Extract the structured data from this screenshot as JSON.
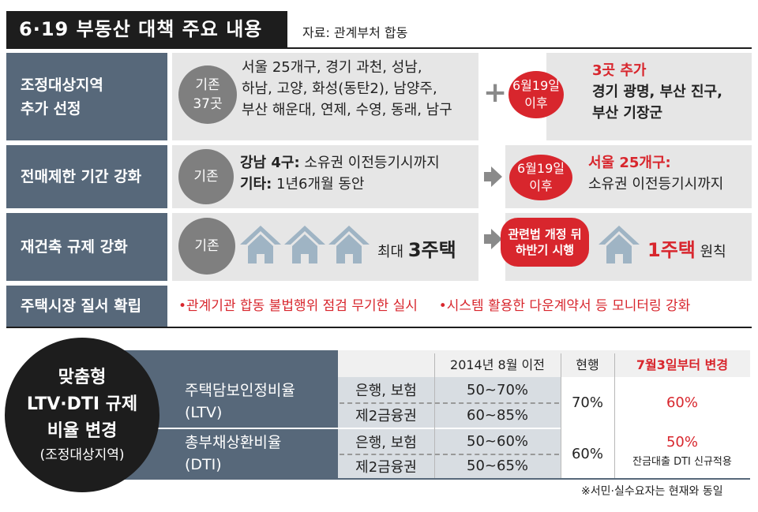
{
  "header": {
    "title": "6·19 부동산 대책 주요 내용",
    "source": "자료: 관계부처 합동"
  },
  "rows": {
    "r1": {
      "label_line1": "조정대상지역",
      "label_line2": "추가 선정",
      "existing_line1": "기존",
      "existing_line2": "37곳",
      "areas_line1": "서울 25개구, 경기 과천, 성남,",
      "areas_line2": "하남, 고양, 화성(동탄2), 남양주,",
      "areas_line3": "부산 해운대, 연제, 수영, 동래, 남구",
      "plus": "+",
      "date_line1": "6월19일",
      "date_line2": "이후",
      "added_title": "3곳 추가",
      "added_line1": "경기 광명, 부산 진구,",
      "added_line2": "부산 기장군"
    },
    "r2": {
      "label": "전매제한 기간 강화",
      "existing": "기존",
      "gangnam_key": "강남 4구:",
      "gangnam_val": " 소유권 이전등기시까지",
      "other_key": "기타:",
      "other_val": " 1년6개월 동안",
      "date_line1": "6월19일",
      "date_line2": "이후",
      "new_title": "서울 25개구:",
      "new_line": "소유권 이전등기시까지"
    },
    "r3": {
      "label": "재건축 규제 강화",
      "existing": "기존",
      "max_prefix": "최대 ",
      "max_value": "3주택",
      "change_line1": "관련법 개정 뒤",
      "change_line2": "하반기 시행",
      "new_value": "1주택",
      "new_suffix": " 원칙"
    },
    "r4": {
      "label": "주택시장 질서 확립",
      "bullet1": "•관계기관 합동 불법행위 점검 무기한 실시",
      "bullet2": "•시스템 활용한 다운계약서 등 모니터링 강화"
    }
  },
  "ltv_dti": {
    "badge_line1": "맞춤형",
    "badge_line2": "LTV·DTI 규제",
    "badge_line3": "비율 변경",
    "badge_line4": "(조정대상지역)",
    "col_before": "2014년 8월 이전",
    "col_current": "현행",
    "col_new": "7월3일부터 변경",
    "ltv_label_line1": "주택담보인정비율",
    "ltv_label_line2": "(LTV)",
    "dti_label_line1": "총부채상환비율",
    "dti_label_line2": "(DTI)",
    "bank_insurance": "은행, 보험",
    "second_fin": "제2금융권",
    "ltv_bank_before": "50~70%",
    "ltv_second_before": "60~85%",
    "ltv_current": "70%",
    "ltv_new": "60%",
    "dti_bank_before": "50~60%",
    "dti_second_before": "50~65%",
    "dti_current": "60%",
    "dti_new": "50%",
    "dti_new_note": "잔금대출 DTI 신규적용"
  },
  "footnote": "※서민·실수요자는 현재와 동일",
  "colors": {
    "label_bg": "#57687a",
    "accent_red": "#d8262d",
    "panel_gray": "#e6e6e6",
    "house_blue": "#9fb4c4"
  }
}
